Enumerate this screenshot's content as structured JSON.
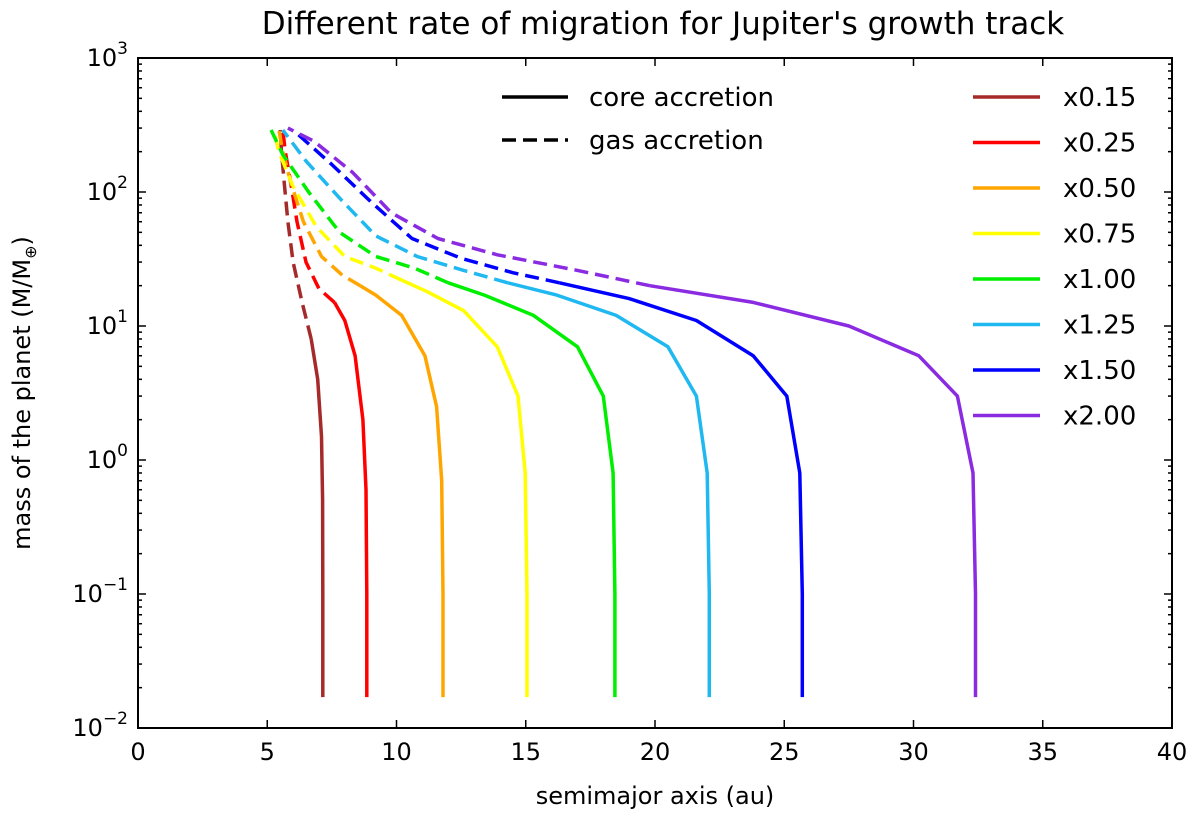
{
  "chart_data": {
    "type": "line",
    "title": "Different rate of migration for Jupiter's growth track",
    "xlabel": "semimajor axis (au)",
    "ylabel": "mass of the planet (M/M",
    "ylabel_symbol": "⊕",
    "ylabel_close": ")",
    "xlim": [
      0,
      40
    ],
    "ylim": [
      0.01,
      1000
    ],
    "yscale": "log",
    "x_ticks": [
      0,
      5,
      10,
      15,
      20,
      25,
      30,
      35,
      40
    ],
    "x_tick_labels": [
      "0",
      "5",
      "10",
      "15",
      "20",
      "25",
      "30",
      "35",
      "40"
    ],
    "y_ticks": [
      0.01,
      0.1,
      1,
      10,
      100,
      1000
    ],
    "y_tick_labels": [
      {
        "base": "10",
        "exp": "−2"
      },
      {
        "base": "10",
        "exp": "−1"
      },
      {
        "base": "10",
        "exp": "0"
      },
      {
        "base": "10",
        "exp": "1"
      },
      {
        "base": "10",
        "exp": "2"
      },
      {
        "base": "10",
        "exp": "3"
      }
    ],
    "style_legend": [
      {
        "label": "core accretion",
        "dash": "solid"
      },
      {
        "label": "gas accretion",
        "dash": "dashed"
      }
    ],
    "series": [
      {
        "name": "x0.15",
        "color": "#a52a2a",
        "core": [
          [
            7.15,
            0.017
          ],
          [
            7.15,
            0.1
          ],
          [
            7.14,
            0.5
          ],
          [
            7.1,
            1.5
          ],
          [
            6.95,
            4
          ],
          [
            6.7,
            8
          ]
        ],
        "gas": [
          [
            6.7,
            8
          ],
          [
            6.35,
            15
          ],
          [
            6.0,
            30
          ],
          [
            5.8,
            60
          ],
          [
            5.65,
            120
          ],
          [
            5.55,
            200
          ],
          [
            5.5,
            290
          ]
        ]
      },
      {
        "name": "x0.25",
        "color": "#ff0000",
        "core": [
          [
            8.85,
            0.017
          ],
          [
            8.85,
            0.1
          ],
          [
            8.82,
            0.6
          ],
          [
            8.7,
            2
          ],
          [
            8.4,
            6
          ],
          [
            8.0,
            11
          ],
          [
            7.6,
            15
          ]
        ],
        "gas": [
          [
            7.6,
            15
          ],
          [
            7.0,
            19
          ],
          [
            6.5,
            30
          ],
          [
            6.15,
            60
          ],
          [
            5.9,
            120
          ],
          [
            5.7,
            200
          ],
          [
            5.6,
            290
          ]
        ]
      },
      {
        "name": "x0.50",
        "color": "#ffa500",
        "core": [
          [
            11.8,
            0.017
          ],
          [
            11.8,
            0.1
          ],
          [
            11.75,
            0.7
          ],
          [
            11.55,
            2.5
          ],
          [
            11.1,
            6
          ],
          [
            10.2,
            12
          ],
          [
            9.2,
            17
          ],
          [
            8.6,
            20
          ]
        ],
        "gas": [
          [
            8.6,
            20
          ],
          [
            7.9,
            24
          ],
          [
            7.1,
            33
          ],
          [
            6.4,
            60
          ],
          [
            5.9,
            120
          ],
          [
            5.6,
            200
          ],
          [
            5.45,
            290
          ]
        ]
      },
      {
        "name": "x0.75",
        "color": "#ffff00",
        "core": [
          [
            15.05,
            0.017
          ],
          [
            15.05,
            0.1
          ],
          [
            14.98,
            0.8
          ],
          [
            14.7,
            3
          ],
          [
            13.9,
            7
          ],
          [
            12.6,
            13
          ],
          [
            11.2,
            18
          ],
          [
            10.2,
            22
          ]
        ],
        "gas": [
          [
            10.2,
            22
          ],
          [
            9.2,
            27
          ],
          [
            8.0,
            33
          ],
          [
            6.9,
            55
          ],
          [
            6.0,
            110
          ],
          [
            5.45,
            200
          ],
          [
            5.25,
            290
          ]
        ]
      },
      {
        "name": "x1.00",
        "color": "#00ee00",
        "core": [
          [
            18.45,
            0.017
          ],
          [
            18.45,
            0.1
          ],
          [
            18.38,
            0.8
          ],
          [
            18.0,
            3
          ],
          [
            17.0,
            7
          ],
          [
            15.3,
            12
          ],
          [
            13.4,
            17
          ],
          [
            12.0,
            21
          ]
        ],
        "gas": [
          [
            12.0,
            21
          ],
          [
            10.7,
            27
          ],
          [
            9.2,
            33
          ],
          [
            7.8,
            50
          ],
          [
            6.6,
            100
          ],
          [
            5.6,
            190
          ],
          [
            5.15,
            290
          ]
        ]
      },
      {
        "name": "x1.25",
        "color": "#1fb8f0",
        "core": [
          [
            22.1,
            0.017
          ],
          [
            22.1,
            0.1
          ],
          [
            22.02,
            0.8
          ],
          [
            21.6,
            3
          ],
          [
            20.5,
            7
          ],
          [
            18.5,
            12
          ],
          [
            16.2,
            17
          ],
          [
            14.3,
            21
          ]
        ],
        "gas": [
          [
            14.3,
            21
          ],
          [
            12.6,
            26
          ],
          [
            10.8,
            33
          ],
          [
            9.2,
            47
          ],
          [
            7.8,
            90
          ],
          [
            6.5,
            170
          ],
          [
            5.6,
            290
          ]
        ]
      },
      {
        "name": "x1.50",
        "color": "#0000ff",
        "core": [
          [
            25.7,
            0.017
          ],
          [
            25.7,
            0.1
          ],
          [
            25.6,
            0.8
          ],
          [
            25.1,
            3
          ],
          [
            23.8,
            6
          ],
          [
            21.6,
            11
          ],
          [
            19.0,
            16
          ],
          [
            16.3,
            21
          ]
        ],
        "gas": [
          [
            16.3,
            21
          ],
          [
            14.5,
            25
          ],
          [
            12.5,
            32
          ],
          [
            10.6,
            45
          ],
          [
            9.0,
            85
          ],
          [
            7.5,
            160
          ],
          [
            6.0,
            290
          ]
        ]
      },
      {
        "name": "x2.00",
        "color": "#8a2be2",
        "core": [
          [
            32.4,
            0.017
          ],
          [
            32.4,
            0.1
          ],
          [
            32.3,
            0.8
          ],
          [
            31.7,
            3
          ],
          [
            30.2,
            6
          ],
          [
            27.5,
            10
          ],
          [
            23.8,
            15
          ],
          [
            19.8,
            20
          ]
        ],
        "gas": [
          [
            19.8,
            20
          ],
          [
            17.0,
            26
          ],
          [
            13.9,
            34
          ],
          [
            11.6,
            45
          ],
          [
            9.8,
            70
          ],
          [
            8.3,
            140
          ],
          [
            6.8,
            240
          ],
          [
            5.8,
            300
          ]
        ]
      }
    ]
  }
}
